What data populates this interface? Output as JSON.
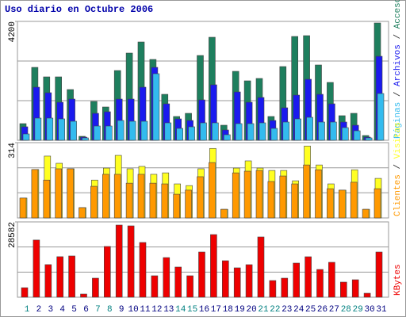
{
  "chart_data": [
    {
      "type": "bar",
      "title": "Uso diario en Octubre 2006",
      "legend_separator": " / ",
      "categories": [
        "1",
        "2",
        "3",
        "4",
        "5",
        "6",
        "7",
        "8",
        "9",
        "10",
        "11",
        "12",
        "13",
        "14",
        "15",
        "16",
        "17",
        "18",
        "19",
        "20",
        "21",
        "22",
        "23",
        "24",
        "25",
        "26",
        "27",
        "28",
        "29",
        "30",
        "31"
      ],
      "highlighted_categories": [
        0,
        6,
        7,
        13,
        14,
        20,
        21,
        27,
        28
      ],
      "highlight_color": "#008080",
      "ylim": [
        0,
        4200
      ],
      "yticks": [
        4200
      ],
      "gridlines": [
        1400,
        2800
      ],
      "series": [
        {
          "name": "Accesos",
          "color": "#1e7f5e",
          "values": [
            588,
            2576,
            2240,
            2240,
            1792,
            140,
            1372,
            1176,
            2464,
            3080,
            3472,
            2856,
            1624,
            840,
            952,
            2996,
            3640,
            532,
            2436,
            2100,
            2184,
            840,
            2604,
            3668,
            3696,
            2660,
            2044,
            868,
            952,
            168,
            4144
          ]
        },
        {
          "name": "Archivos",
          "color": "#1a1aee",
          "values": [
            476,
            1876,
            1680,
            1344,
            1456,
            112,
            952,
            1008,
            1456,
            1456,
            1876,
            2576,
            1288,
            756,
            700,
            1428,
            1960,
            364,
            1708,
            1344,
            1512,
            700,
            1148,
            1596,
            2156,
            1624,
            1288,
            644,
            532,
            112,
            2968
          ]
        },
        {
          "name": "Páginas",
          "color": "#33bbee",
          "values": [
            224,
            784,
            784,
            756,
            672,
            84,
            504,
            504,
            700,
            672,
            672,
            2352,
            616,
            420,
            476,
            616,
            616,
            196,
            588,
            588,
            616,
            420,
            644,
            756,
            812,
            644,
            644,
            448,
            336,
            84,
            1652
          ]
        }
      ]
    },
    {
      "type": "bar",
      "legend_separator": " / ",
      "ylim": [
        0,
        314
      ],
      "yticks": [
        314
      ],
      "gridlines": [
        105,
        209
      ],
      "series": [
        {
          "name": "Visitas",
          "color": "#ffff22",
          "values": [
            83,
            202,
            258,
            228,
            205,
            43,
            158,
            208,
            261,
            205,
            215,
            182,
            188,
            142,
            135,
            205,
            290,
            36,
            208,
            238,
            208,
            198,
            198,
            155,
            300,
            221,
            142,
            116,
            201,
            36,
            165
          ]
        },
        {
          "name": "Clientes",
          "color": "#ff9900",
          "values": [
            83,
            202,
            158,
            205,
            205,
            43,
            132,
            182,
            182,
            145,
            182,
            145,
            142,
            99,
            116,
            172,
            231,
            36,
            188,
            195,
            198,
            152,
            175,
            142,
            221,
            201,
            122,
            116,
            149,
            36,
            122
          ]
        }
      ]
    },
    {
      "type": "bar",
      "ylim": [
        0,
        28582
      ],
      "yticks": [
        28582
      ],
      "gridlines": [
        9527,
        19055
      ],
      "series": [
        {
          "name": "KBytes",
          "color": "#ee0000",
          "values": [
            3600,
            21700,
            12360,
            15370,
            15650,
            1200,
            7220,
            19260,
            27380,
            27080,
            20770,
            8130,
            15040,
            11440,
            8130,
            17150,
            23770,
            13840,
            11140,
            12340,
            22870,
            6320,
            7220,
            12940,
            15350,
            10530,
            13240,
            5720,
            6620,
            1500,
            17150
          ]
        }
      ]
    }
  ]
}
